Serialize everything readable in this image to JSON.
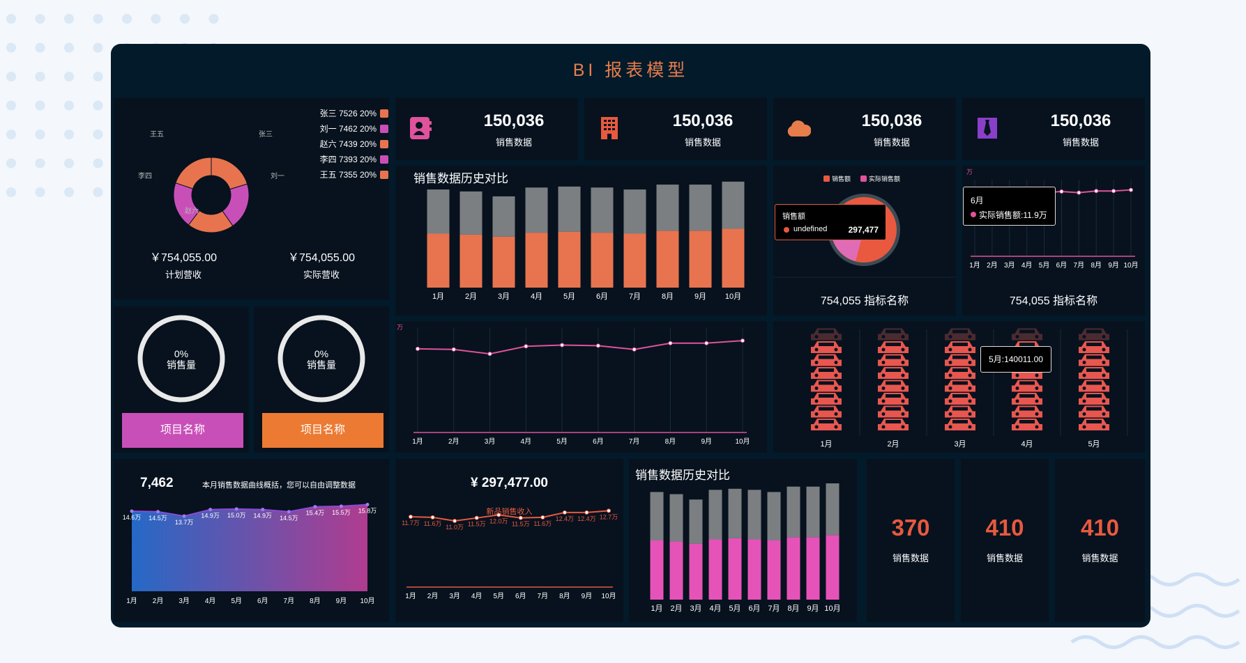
{
  "title": "BI 报表模型",
  "donut": {
    "legend": [
      {
        "name": "张三",
        "value": 7526,
        "pct": "20%",
        "color": "#e8744f",
        "text": "张三 7526 20%"
      },
      {
        "name": "刘一",
        "value": 7462,
        "pct": "20%",
        "color": "#c94fb8",
        "text": "刘一 7462 20%"
      },
      {
        "name": "赵六",
        "value": 7439,
        "pct": "20%",
        "color": "#e8744f",
        "text": "赵六 7439 20%"
      },
      {
        "name": "李四",
        "value": 7393,
        "pct": "20%",
        "color": "#c94fb8",
        "text": "李四 7393 20%"
      },
      {
        "name": "王五",
        "value": 7355,
        "pct": "20%",
        "color": "#e8744f",
        "text": "王五 7355 20%"
      }
    ],
    "slice_labels": [
      "王五",
      "张三",
      "刘一",
      "李四",
      "赵六"
    ],
    "planned": {
      "value": "￥754,055.00",
      "label": "计划营收"
    },
    "actual": {
      "value": "￥754,055.00",
      "label": "实际营收"
    }
  },
  "kpis": [
    {
      "value": "150,036",
      "label": "销售数据",
      "icon": "contact-book-icon",
      "color": "#e0529c"
    },
    {
      "value": "150,036",
      "label": "销售数据",
      "icon": "building-icon",
      "color": "#e8593f"
    },
    {
      "value": "150,036",
      "label": "销售数据",
      "icon": "cloud-icon",
      "color": "#e77d4b"
    },
    {
      "value": "150,036",
      "label": "销售数据",
      "icon": "shirt-tie-icon",
      "color": "#8a3fc9"
    }
  ],
  "rings": [
    {
      "pct": "0%",
      "label": "销售量",
      "button": "项目名称",
      "button_color": "#c94fb8"
    },
    {
      "pct": "0%",
      "label": "销售量",
      "button": "项目名称",
      "button_color": "#ec7a33"
    }
  ],
  "stacked_main": {
    "title": "销售数据历史对比",
    "chart_data": {
      "type": "bar",
      "categories": [
        "1月",
        "2月",
        "3月",
        "4月",
        "5月",
        "6月",
        "7月",
        "8月",
        "9月",
        "10月"
      ],
      "series": [
        {
          "values": [
            55,
            54,
            52,
            56,
            57,
            56,
            55,
            58,
            58,
            60
          ],
          "color": "#e8744f"
        },
        {
          "values": [
            45,
            44,
            41,
            46,
            46,
            46,
            45,
            47,
            47,
            48
          ],
          "color": "#7b7f82"
        }
      ]
    }
  },
  "pie_small": {
    "legend": [
      "销售额",
      "实际销售额"
    ],
    "legend_colors": [
      "#e8593f",
      "#e0529c"
    ],
    "tooltip": {
      "title": "销售额",
      "name": "undefined",
      "value": "297,477"
    },
    "caption": "754,055 指标名称"
  },
  "line_small": {
    "unit": "万",
    "tooltip": {
      "title": "6月",
      "text": "实际销售额:11.9万"
    },
    "caption": "754,055 指标名称",
    "chart_data": {
      "type": "line",
      "x": [
        "1月",
        "2月",
        "3月",
        "4月",
        "5月",
        "6月",
        "7月",
        "8月",
        "9月",
        "10月"
      ],
      "y": [
        11.6,
        11.6,
        11.5,
        11.7,
        11.7,
        11.9,
        11.7,
        12.0,
        12.0,
        12.2
      ]
    }
  },
  "line_wide": {
    "unit": "万",
    "chart_data": {
      "type": "line",
      "x": [
        "1月",
        "2月",
        "3月",
        "4月",
        "5月",
        "6月",
        "7月",
        "8月",
        "9月",
        "10月"
      ],
      "y": [
        13.3,
        13.2,
        12.5,
        13.7,
        13.9,
        13.8,
        13.2,
        14.2,
        14.2,
        14.6
      ]
    }
  },
  "cars": {
    "tooltip": "5月:140011.00",
    "categories": [
      "1月",
      "2月",
      "3月",
      "4月",
      "5月"
    ],
    "values": [
      8,
      8,
      8,
      8,
      8
    ]
  },
  "area": {
    "value": "7,462",
    "note": "本月销售数据曲线概括，您可以自由调整数据",
    "chart_data": {
      "type": "area",
      "x": [
        "1月",
        "2月",
        "3月",
        "4月",
        "5月",
        "6月",
        "7月",
        "8月",
        "9月",
        "10月"
      ],
      "y": [
        14.6,
        14.5,
        13.7,
        14.9,
        15.0,
        14.9,
        14.5,
        15.4,
        15.5,
        15.8
      ],
      "labels": [
        "14.6万",
        "14.5万",
        "13.7万",
        "14.9万",
        "15.0万",
        "14.9万",
        "14.5万",
        "15.4万",
        "15.5万",
        "15.8万"
      ]
    }
  },
  "new_sales": {
    "value": "¥ 297,477.00",
    "label": "新品销售收入",
    "chart_data": {
      "type": "line",
      "x": [
        "1月",
        "2月",
        "3月",
        "4月",
        "5月",
        "6月",
        "7月",
        "8月",
        "9月",
        "10月"
      ],
      "y": [
        11.7,
        11.6,
        11.0,
        11.5,
        12.0,
        11.5,
        11.6,
        12.4,
        12.4,
        12.7
      ],
      "labels": [
        "11.7万",
        "11.6万",
        "11.0万",
        "11.5万",
        "12.0万",
        "11.5万",
        "11.6万",
        "12.4万",
        "12.4万",
        "12.7万"
      ]
    }
  },
  "stacked_bottom": {
    "title": "销售数据历史对比",
    "chart_data": {
      "type": "bar",
      "categories": [
        "1月",
        "2月",
        "3月",
        "4月",
        "5月",
        "6月",
        "7月",
        "8月",
        "9月",
        "10月"
      ],
      "series": [
        {
          "values": [
            55,
            54,
            52,
            56,
            57,
            56,
            55,
            58,
            58,
            60
          ],
          "color": "#e653b8"
        },
        {
          "values": [
            45,
            44,
            41,
            46,
            46,
            46,
            45,
            47,
            47,
            48
          ],
          "color": "#7b7f82"
        }
      ]
    }
  },
  "small_kpis": [
    {
      "value": "370",
      "label": "销售数据"
    },
    {
      "value": "410",
      "label": "销售数据"
    },
    {
      "value": "410",
      "label": "销售数据"
    }
  ]
}
